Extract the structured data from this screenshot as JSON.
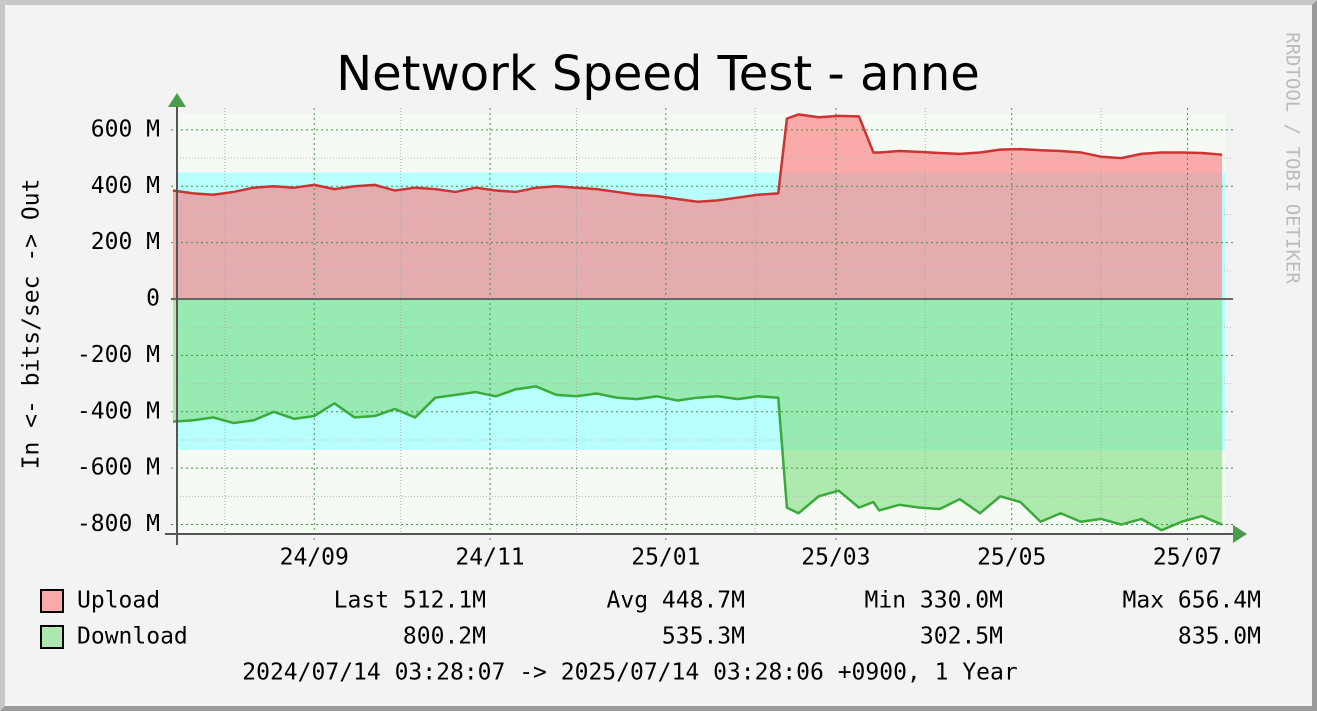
{
  "chart_data": {
    "type": "line",
    "title": "Network Speed Test - anne",
    "y_label": "In <-  bits/sec -> Out",
    "watermark": "RRDTOOL / TOBI OETIKER",
    "footer": "2024/07/14 03:28:07 -> 2025/07/14 03:28:06 +0900, 1 Year",
    "x": [
      "2024-07-14",
      "2024-07-21",
      "2024-07-28",
      "2024-08-04",
      "2024-08-11",
      "2024-08-18",
      "2024-08-25",
      "2024-09-01",
      "2024-09-08",
      "2024-09-15",
      "2024-09-22",
      "2024-09-29",
      "2024-10-06",
      "2024-10-13",
      "2024-10-20",
      "2024-10-27",
      "2024-11-03",
      "2024-11-10",
      "2024-11-17",
      "2024-11-24",
      "2024-12-01",
      "2024-12-08",
      "2024-12-15",
      "2024-12-22",
      "2024-12-29",
      "2025-01-05",
      "2025-01-12",
      "2025-01-19",
      "2025-01-26",
      "2025-02-02",
      "2025-02-09",
      "2025-02-12",
      "2025-02-16",
      "2025-02-23",
      "2025-03-02",
      "2025-03-09",
      "2025-03-14",
      "2025-03-16",
      "2025-03-23",
      "2025-03-30",
      "2025-04-06",
      "2025-04-13",
      "2025-04-20",
      "2025-04-27",
      "2025-05-04",
      "2025-05-11",
      "2025-05-18",
      "2025-05-25",
      "2025-06-01",
      "2025-06-08",
      "2025-06-15",
      "2025-06-22",
      "2025-06-29",
      "2025-07-06",
      "2025-07-13"
    ],
    "series": [
      {
        "name": "Upload",
        "color": "#cc3333",
        "area_color": "#ff797d",
        "values": [
          385000000,
          375000000,
          370000000,
          380000000,
          395000000,
          400000000,
          395000000,
          405000000,
          390000000,
          400000000,
          405000000,
          385000000,
          395000000,
          390000000,
          380000000,
          395000000,
          385000000,
          380000000,
          395000000,
          400000000,
          395000000,
          390000000,
          380000000,
          370000000,
          365000000,
          355000000,
          345000000,
          350000000,
          360000000,
          370000000,
          375000000,
          640000000,
          655000000,
          645000000,
          650000000,
          648000000,
          520000000,
          520000000,
          525000000,
          522000000,
          518000000,
          515000000,
          520000000,
          530000000,
          532000000,
          528000000,
          525000000,
          520000000,
          505000000,
          500000000,
          515000000,
          520000000,
          520000000,
          518000000,
          512100000
        ]
      },
      {
        "name": "Download",
        "color": "#3aaa3a",
        "area_color": "#82df82",
        "values": [
          -435000000,
          -430000000,
          -420000000,
          -440000000,
          -430000000,
          -400000000,
          -425000000,
          -415000000,
          -370000000,
          -420000000,
          -415000000,
          -390000000,
          -420000000,
          -350000000,
          -340000000,
          -330000000,
          -345000000,
          -320000000,
          -310000000,
          -340000000,
          -345000000,
          -335000000,
          -350000000,
          -355000000,
          -345000000,
          -360000000,
          -350000000,
          -345000000,
          -355000000,
          -345000000,
          -350000000,
          -740000000,
          -760000000,
          -700000000,
          -680000000,
          -740000000,
          -720000000,
          -750000000,
          -730000000,
          -740000000,
          -745000000,
          -710000000,
          -760000000,
          -700000000,
          -720000000,
          -790000000,
          -760000000,
          -790000000,
          -780000000,
          -800000000,
          -780000000,
          -820000000,
          -790000000,
          -770000000,
          -800200000
        ]
      }
    ],
    "average_band": {
      "upper": 448700000,
      "lower": -535300000,
      "color": "#b8ffff"
    },
    "legend_stats": [
      [
        "Last 512.1M",
        "Avg 448.7M",
        "Min 330.0M",
        "Max 656.4M"
      ],
      [
        "800.2M",
        "535.3M",
        "302.5M",
        "835.0M"
      ]
    ],
    "xlim": [
      "2024-07-14",
      "2025-07-14"
    ],
    "xticks": [
      {
        "value": "2024-09-01",
        "label": "24/09"
      },
      {
        "value": "2024-11-01",
        "label": "24/11"
      },
      {
        "value": "2025-01-01",
        "label": "25/01"
      },
      {
        "value": "2025-03-01",
        "label": "25/03"
      },
      {
        "value": "2025-05-01",
        "label": "25/05"
      },
      {
        "value": "2025-07-01",
        "label": "25/07"
      }
    ],
    "x_minor_ticks": [
      "2024-08-01",
      "2024-10-01",
      "2024-12-01",
      "2025-02-01",
      "2025-04-01",
      "2025-06-01"
    ],
    "ylim": [
      -830000000,
      660000000
    ],
    "yticks": [
      {
        "value": 600000000,
        "label": "600 M"
      },
      {
        "value": 400000000,
        "label": "400 M"
      },
      {
        "value": 200000000,
        "label": "200 M"
      },
      0,
      {
        "value": -200000000,
        "label": "-200 M"
      },
      {
        "value": -400000000,
        "label": "-400 M"
      },
      {
        "value": -600000000,
        "label": "-600 M"
      },
      {
        "value": -800000000,
        "label": "-800 M"
      }
    ],
    "y_minor_ticks": [
      500000000,
      300000000,
      100000000,
      -100000000,
      -300000000,
      -500000000,
      -700000000
    ],
    "grid": true
  }
}
